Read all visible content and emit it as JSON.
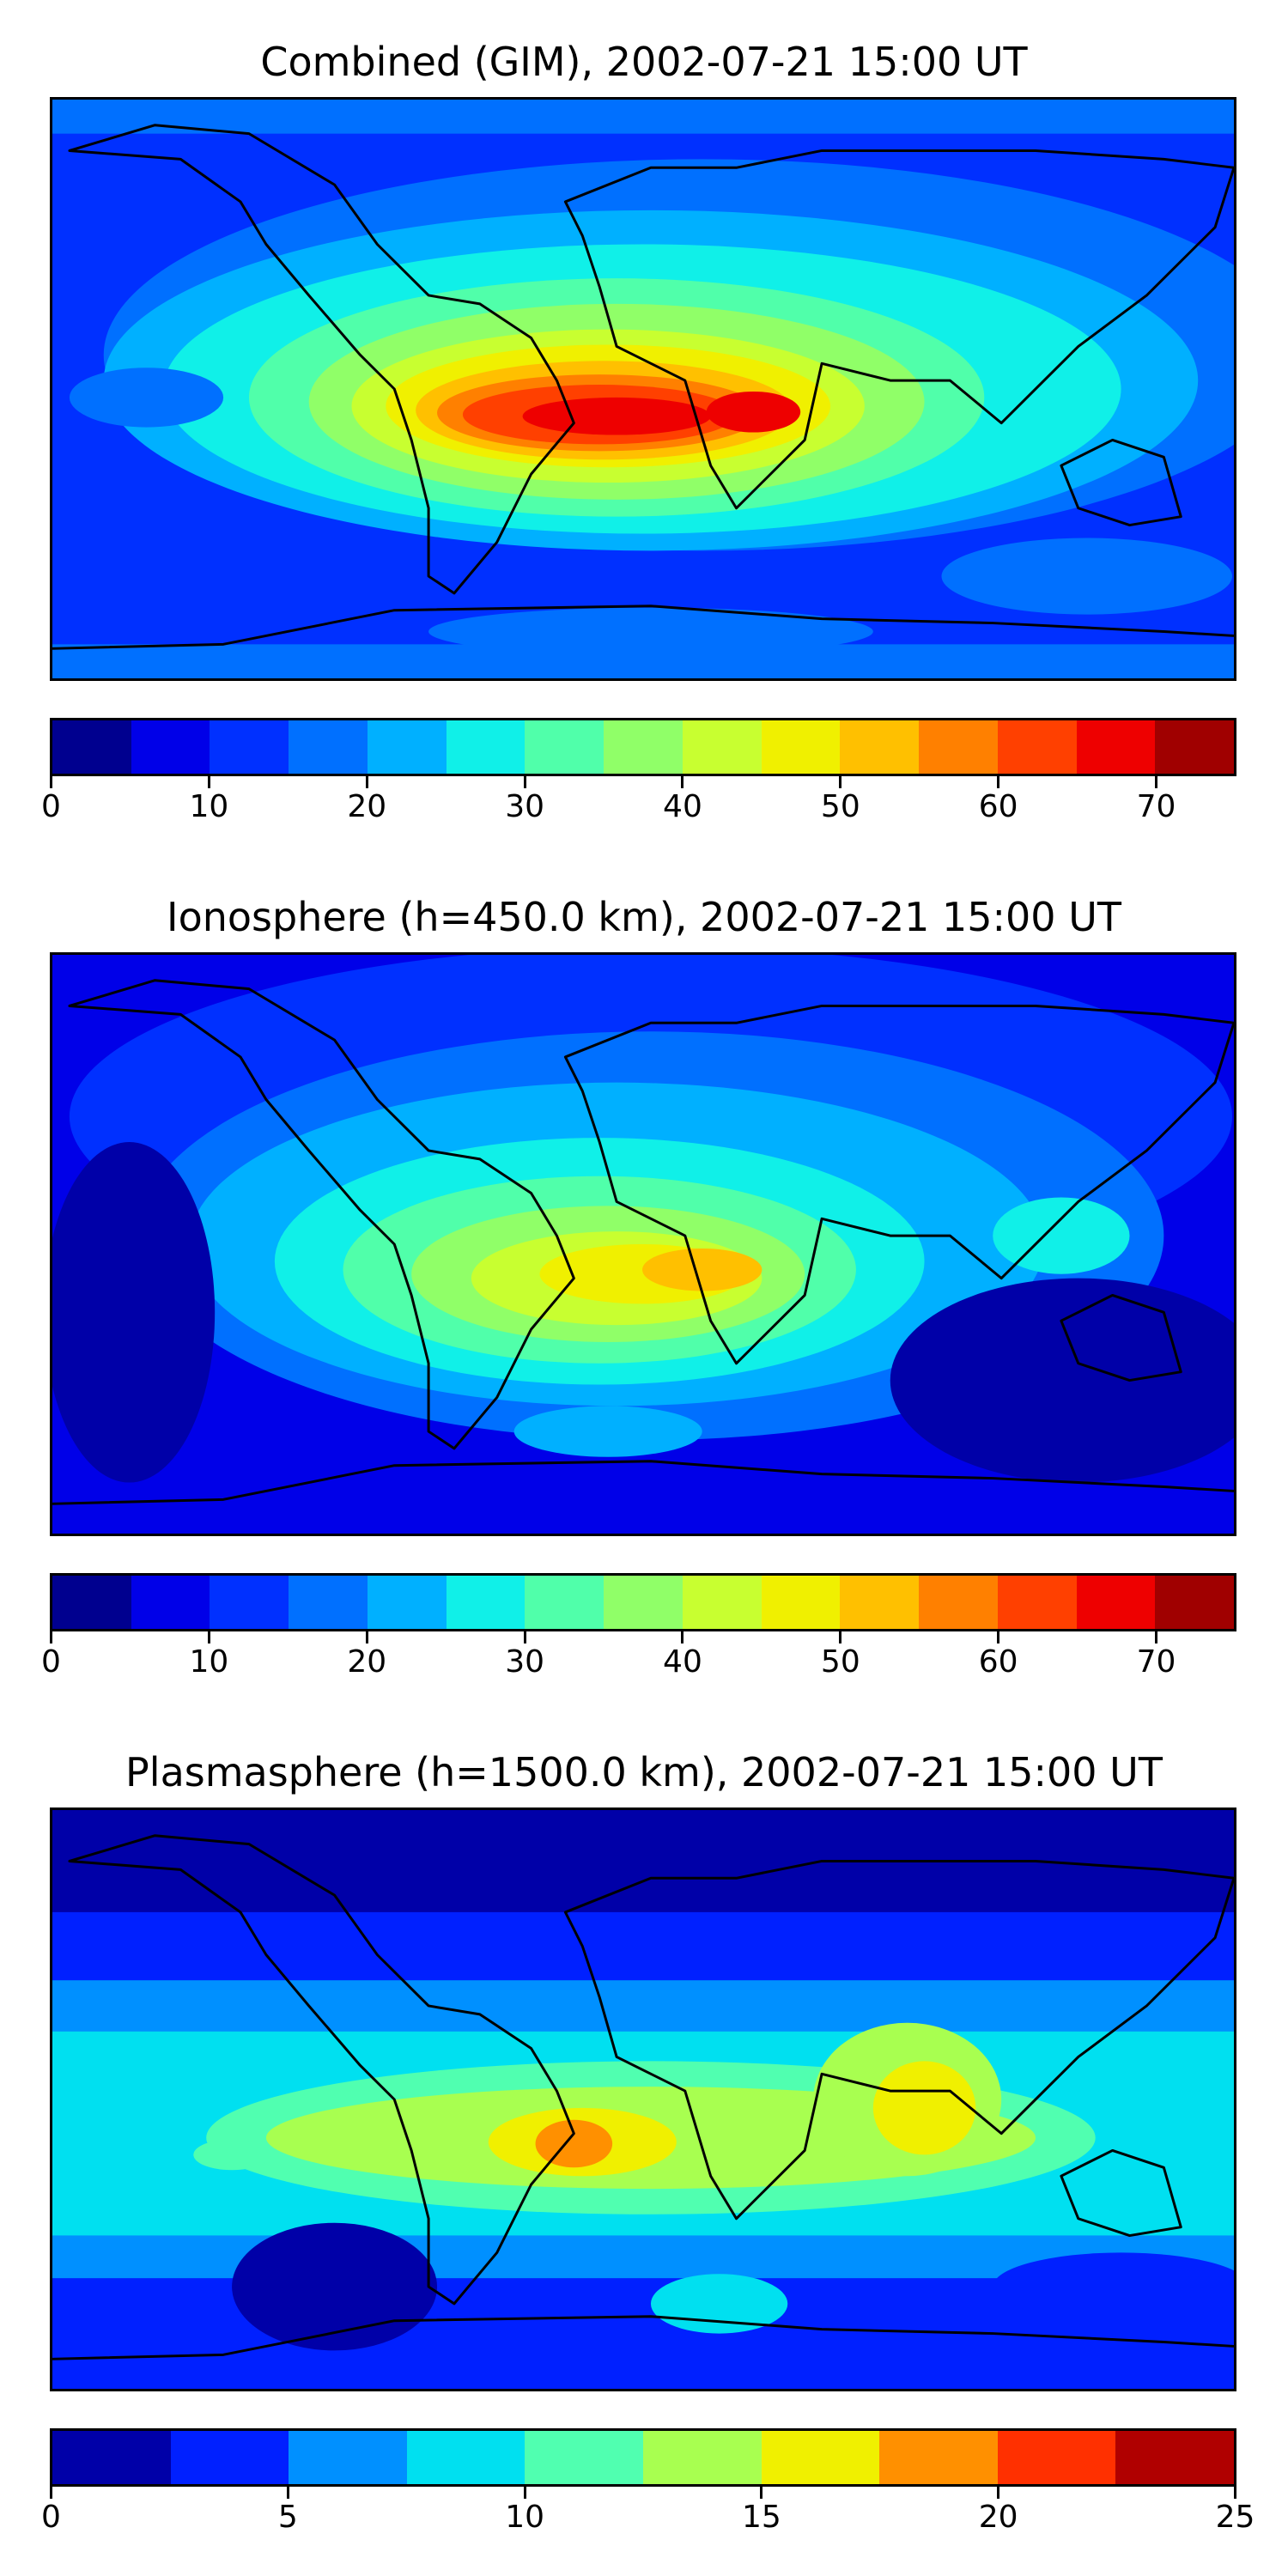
{
  "panels": [
    {
      "title": "Combined (GIM), 2002-07-21 15:00 UT",
      "colorbar": {
        "min": 0,
        "max": 75,
        "step": 5,
        "ticks": [
          "0",
          "10",
          "20",
          "30",
          "40",
          "50",
          "60",
          "70"
        ],
        "tick_values": [
          0,
          10,
          20,
          30,
          40,
          50,
          60,
          70
        ],
        "colors": [
          "#00008f",
          "#0000e8",
          "#0030ff",
          "#0070ff",
          "#00b0ff",
          "#10f0e8",
          "#50ffaa",
          "#90ff68",
          "#c8ff30",
          "#f0f000",
          "#ffc000",
          "#ff8000",
          "#ff4000",
          "#ee0000",
          "#a00000"
        ]
      }
    },
    {
      "title": "Ionosphere  (h=450.0 km), 2002-07-21 15:00 UT",
      "colorbar": {
        "min": 0,
        "max": 75,
        "step": 5,
        "ticks": [
          "0",
          "10",
          "20",
          "30",
          "40",
          "50",
          "60",
          "70"
        ],
        "tick_values": [
          0,
          10,
          20,
          30,
          40,
          50,
          60,
          70
        ],
        "colors": [
          "#00008f",
          "#0000e8",
          "#0030ff",
          "#0070ff",
          "#00b0ff",
          "#10f0e8",
          "#50ffaa",
          "#90ff68",
          "#c8ff30",
          "#f0f000",
          "#ffc000",
          "#ff8000",
          "#ff4000",
          "#ee0000",
          "#a00000"
        ]
      }
    },
    {
      "title": "Plasmasphere (h=1500.0 km), 2002-07-21 15:00 UT",
      "colorbar": {
        "min": 0,
        "max": 25,
        "step": 2.5,
        "ticks": [
          "0",
          "5",
          "10",
          "15",
          "20",
          "25"
        ],
        "tick_values": [
          0,
          5,
          10,
          15,
          20,
          25
        ],
        "colors": [
          "#0000a8",
          "#0020ff",
          "#0090ff",
          "#00e0f0",
          "#50ffb0",
          "#a8ff50",
          "#f0f000",
          "#ff9000",
          "#ff3000",
          "#b00000"
        ]
      }
    }
  ]
}
